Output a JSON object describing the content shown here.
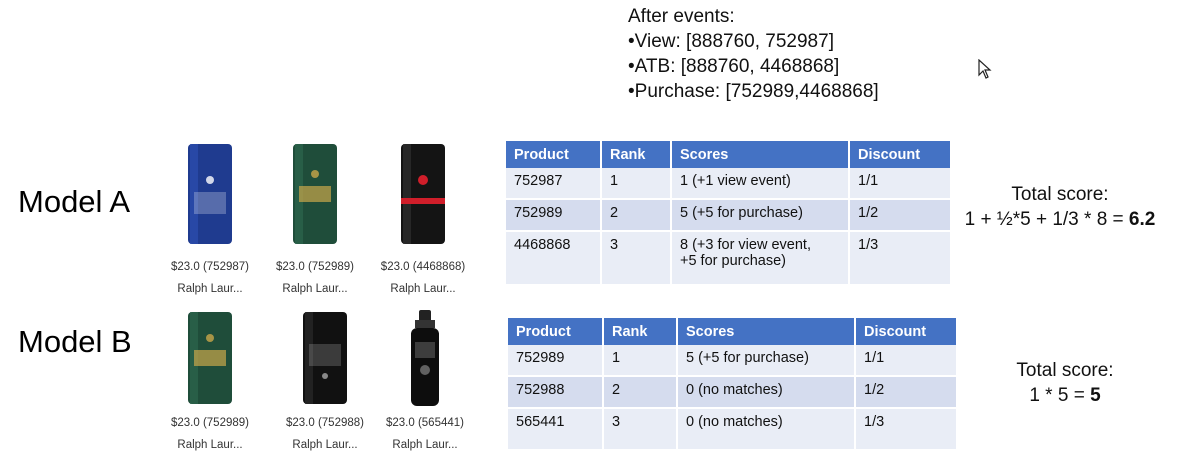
{
  "events": {
    "title": "After events:",
    "view": "•View: [888760, 752987]",
    "atb": "•ATB: [888760, 4468868]",
    "purchase": "•Purchase: [752989,4468868]"
  },
  "columns": [
    "Product",
    "Rank",
    "Scores",
    "Discount"
  ],
  "model_a": {
    "label": "Model A",
    "products": [
      {
        "price": "$23.0 (752987)",
        "brand": "Ralph Laur...",
        "icon": "blue-deodorant-stick-icon"
      },
      {
        "price": "$23.0 (752989)",
        "brand": "Ralph Laur...",
        "icon": "green-deodorant-stick-icon"
      },
      {
        "price": "$23.0 (4468868)",
        "brand": "Ralph Laur...",
        "icon": "black-red-deodorant-stick-icon"
      }
    ],
    "rows": [
      {
        "product": "752987",
        "rank": "1",
        "scores": "1 (+1 view event)",
        "discount": "1/1"
      },
      {
        "product": "752989",
        "rank": "2",
        "scores": "5 (+5 for purchase)",
        "discount": "1/2"
      },
      {
        "product": "4468868",
        "rank": "3",
        "scores": "8 (+3 for view event,",
        "scores2": "+5 for purchase)",
        "discount": "1/3"
      }
    ],
    "total_label": "Total score:",
    "formula": "1 + ½*5 + 1/3 * 8 = ",
    "result": "6.2"
  },
  "model_b": {
    "label": "Model B",
    "products": [
      {
        "price": "$23.0 (752989)",
        "brand": "Ralph Laur...",
        "icon": "green-deodorant-stick-icon"
      },
      {
        "price": "$23.0 (752988)",
        "brand": "Ralph Laur...",
        "icon": "black-deodorant-stick-icon"
      },
      {
        "price": "$23.0 (565441)",
        "brand": "Ralph Laur...",
        "icon": "body-spray-icon"
      }
    ],
    "rows": [
      {
        "product": "752989",
        "rank": "1",
        "scores": "5 (+5 for purchase)",
        "discount": "1/1"
      },
      {
        "product": "752988",
        "rank": "2",
        "scores": "0 (no matches)",
        "discount": "1/2"
      },
      {
        "product": "565441",
        "rank": "3",
        "scores": "0 (no matches)",
        "discount": "1/3"
      }
    ],
    "total_label": "Total score:",
    "formula": "1 * 5 = ",
    "result": "5"
  }
}
